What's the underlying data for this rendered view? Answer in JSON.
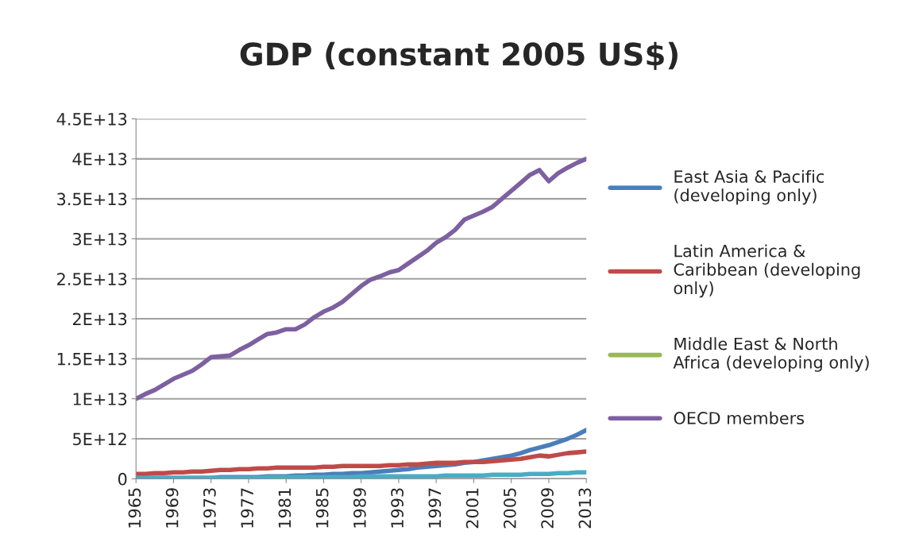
{
  "chart_data": {
    "type": "line",
    "title": "GDP (constant 2005 US$)",
    "x": [
      1965,
      1966,
      1967,
      1968,
      1969,
      1970,
      1971,
      1972,
      1973,
      1974,
      1975,
      1976,
      1977,
      1978,
      1979,
      1980,
      1981,
      1982,
      1983,
      1984,
      1985,
      1986,
      1987,
      1988,
      1989,
      1990,
      1991,
      1992,
      1993,
      1994,
      1995,
      1996,
      1997,
      1998,
      1999,
      2000,
      2001,
      2002,
      2003,
      2004,
      2005,
      2006,
      2007,
      2008,
      2009,
      2010,
      2011,
      2012,
      2013
    ],
    "xlim": [
      1965,
      2013
    ],
    "xticks": [
      1965,
      1969,
      1973,
      1977,
      1981,
      1985,
      1989,
      1993,
      1997,
      2001,
      2005,
      2009,
      2013
    ],
    "ylim": [
      0,
      45000000000000.0
    ],
    "yticks": [
      {
        "value": 0,
        "label": "0"
      },
      {
        "value": 5000000000000.0,
        "label": "5E+12"
      },
      {
        "value": 10000000000000.0,
        "label": "1E+13"
      },
      {
        "value": 15000000000000.0,
        "label": "1.5E+13"
      },
      {
        "value": 20000000000000.0,
        "label": "2E+13"
      },
      {
        "value": 25000000000000.0,
        "label": "2.5E+13"
      },
      {
        "value": 30000000000000.0,
        "label": "3E+13"
      },
      {
        "value": 35000000000000.0,
        "label": "3.5E+13"
      },
      {
        "value": 40000000000000.0,
        "label": "4E+13"
      },
      {
        "value": 45000000000000.0,
        "label": "4.5E+13"
      }
    ],
    "grid": "y",
    "legend": "right",
    "marker": "none",
    "line_style": "solid",
    "series": [
      {
        "name": "East Asia & Pacific\n(developing only)",
        "color": "#4a7ebb",
        "values": [
          100000000000.0,
          100000000000.0,
          100000000000.0,
          100000000000.0,
          100000000000.0,
          100000000000.0,
          100000000000.0,
          100000000000.0,
          100000000000.0,
          200000000000.0,
          200000000000.0,
          200000000000.0,
          200000000000.0,
          200000000000.0,
          300000000000.0,
          300000000000.0,
          300000000000.0,
          400000000000.0,
          400000000000.0,
          500000000000.0,
          500000000000.0,
          600000000000.0,
          600000000000.0,
          700000000000.0,
          700000000000.0,
          800000000000.0,
          900000000000.0,
          1000000000000.0,
          1100000000000.0,
          1200000000000.0,
          1400000000000.0,
          1500000000000.0,
          1600000000000.0,
          1700000000000.0,
          1800000000000.0,
          2000000000000.0,
          2100000000000.0,
          2300000000000.0,
          2500000000000.0,
          2700000000000.0,
          2900000000000.0,
          3200000000000.0,
          3600000000000.0,
          3900000000000.0,
          4200000000000.0,
          4600000000000.0,
          5000000000000.0,
          5500000000000.0,
          6100000000000.0
        ]
      },
      {
        "name": "Latin America &\nCaribbean (developing\nonly)",
        "color": "#be4b48",
        "values": [
          600000000000.0,
          600000000000.0,
          700000000000.0,
          700000000000.0,
          800000000000.0,
          800000000000.0,
          900000000000.0,
          900000000000.0,
          1000000000000.0,
          1100000000000.0,
          1100000000000.0,
          1200000000000.0,
          1200000000000.0,
          1300000000000.0,
          1300000000000.0,
          1400000000000.0,
          1400000000000.0,
          1400000000000.0,
          1400000000000.0,
          1400000000000.0,
          1500000000000.0,
          1500000000000.0,
          1600000000000.0,
          1600000000000.0,
          1600000000000.0,
          1600000000000.0,
          1600000000000.0,
          1700000000000.0,
          1700000000000.0,
          1800000000000.0,
          1800000000000.0,
          1900000000000.0,
          2000000000000.0,
          2000000000000.0,
          2000000000000.0,
          2100000000000.0,
          2100000000000.0,
          2100000000000.0,
          2200000000000.0,
          2300000000000.0,
          2400000000000.0,
          2500000000000.0,
          2700000000000.0,
          2900000000000.0,
          2800000000000.0,
          3000000000000.0,
          3200000000000.0,
          3300000000000.0,
          3400000000000.0
        ]
      },
      {
        "name": "Middle East & North\nAfrica (developing only)",
        "color": "#98b954",
        "values": [
          null,
          null,
          null,
          null,
          null,
          null,
          null,
          null,
          null,
          null,
          null,
          null,
          null,
          null,
          null,
          null,
          null,
          null,
          null,
          null,
          null,
          null,
          null,
          null,
          null,
          null,
          null,
          null,
          null,
          null,
          null,
          null,
          null,
          null,
          null,
          null,
          null,
          null,
          null,
          null,
          null,
          null,
          null,
          null,
          null,
          null,
          null,
          null,
          null
        ]
      },
      {
        "name": "OECD members",
        "color": "#7d60a0",
        "values": [
          10000000000000.0,
          10600000000000.0,
          11100000000000.0,
          11800000000000.0,
          12500000000000.0,
          13000000000000.0,
          13500000000000.0,
          14300000000000.0,
          15200000000000.0,
          15300000000000.0,
          15400000000000.0,
          16100000000000.0,
          16700000000000.0,
          17400000000000.0,
          18100000000000.0,
          18300000000000.0,
          18700000000000.0,
          18700000000000.0,
          19300000000000.0,
          20200000000000.0,
          20900000000000.0,
          21400000000000.0,
          22100000000000.0,
          23100000000000.0,
          24100000000000.0,
          24900000000000.0,
          25300000000000.0,
          25800000000000.0,
          26100000000000.0,
          26900000000000.0,
          27700000000000.0,
          28500000000000.0,
          29500000000000.0,
          30200000000000.0,
          31100000000000.0,
          32400000000000.0,
          32900000000000.0,
          33400000000000.0,
          34000000000000.0,
          35000000000000.0,
          36000000000000.0,
          37000000000000.0,
          38000000000000.0,
          38600000000000.0,
          37200000000000.0,
          38200000000000.0,
          38900000000000.0,
          39500000000000.0,
          40000000000000.0
        ]
      },
      {
        "color": "#4aacc5",
        "values": [
          100000000000.0,
          100000000000.0,
          100000000000.0,
          100000000000.0,
          100000000000.0,
          100000000000.0,
          100000000000.0,
          100000000000.0,
          100000000000.0,
          100000000000.0,
          100000000000.0,
          100000000000.0,
          100000000000.0,
          100000000000.0,
          200000000000.0,
          200000000000.0,
          200000000000.0,
          200000000000.0,
          200000000000.0,
          200000000000.0,
          200000000000.0,
          200000000000.0,
          200000000000.0,
          200000000000.0,
          300000000000.0,
          300000000000.0,
          300000000000.0,
          300000000000.0,
          300000000000.0,
          300000000000.0,
          300000000000.0,
          300000000000.0,
          300000000000.0,
          400000000000.0,
          400000000000.0,
          400000000000.0,
          400000000000.0,
          400000000000.0,
          500000000000.0,
          500000000000.0,
          500000000000.0,
          500000000000.0,
          600000000000.0,
          600000000000.0,
          600000000000.0,
          700000000000.0,
          700000000000.0,
          800000000000.0,
          800000000000.0
        ]
      }
    ]
  }
}
